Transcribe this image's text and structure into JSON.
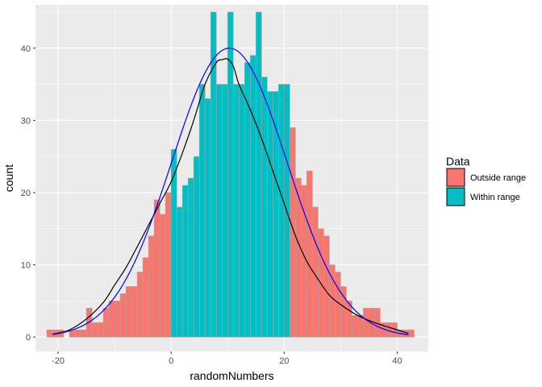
{
  "chart_data": {
    "type": "bar",
    "subtype": "histogram",
    "xlabel": "randomNumbers",
    "ylabel": "count",
    "xlim": [
      -24,
      45.5
    ],
    "ylim": [
      -2,
      46
    ],
    "x_ticks": [
      -20,
      0,
      20,
      40
    ],
    "y_ticks": [
      0,
      10,
      20,
      30,
      40
    ],
    "bin_width": 1,
    "bins": {
      "start": -22,
      "counts": [
        1,
        1,
        1,
        0,
        1,
        1,
        1,
        4,
        2,
        2,
        4,
        5,
        5,
        6,
        7,
        7,
        9,
        11,
        14,
        19,
        17,
        20,
        26,
        18,
        21,
        22,
        25,
        35,
        33,
        45,
        35,
        35,
        45,
        35,
        35,
        38,
        39,
        45,
        36,
        34,
        34,
        35,
        35,
        29,
        22,
        21,
        23,
        18,
        15,
        14,
        10,
        9,
        7,
        5,
        3,
        3,
        4,
        4,
        4,
        2,
        2,
        2,
        1,
        1,
        1
      ],
      "within_range_from": 0,
      "within_range_to": 20.5
    },
    "series": [
      {
        "name": "Outside range",
        "color": "#F8766D"
      },
      {
        "name": "Within range",
        "color": "#00BFC4"
      }
    ],
    "bar_outline_color": "#a6a6a6",
    "curves": [
      {
        "color": "#000000",
        "kind": "density-smooth",
        "x": [
          -21,
          -18,
          -15,
          -12,
          -10,
          -8,
          -6,
          -4,
          -2,
          0,
          2,
          4,
          6,
          8,
          9,
          10,
          11,
          12,
          14,
          16,
          18,
          20,
          22,
          24,
          26,
          28,
          30,
          33,
          36,
          40,
          42
        ],
        "y": [
          0.4,
          1.0,
          2.5,
          4.8,
          7.2,
          9.6,
          12.5,
          15.5,
          18.5,
          21.5,
          25.5,
          30,
          35,
          38,
          38.4,
          38.5,
          37.5,
          35,
          31.5,
          27.5,
          23,
          18.5,
          14,
          10.5,
          8,
          5.8,
          4.5,
          3,
          2,
          1,
          0.5
        ]
      },
      {
        "color": "#0000ff",
        "kind": "normal-fit",
        "mean": 10.3,
        "sd": 10.2,
        "peak": 40,
        "x_range": [
          -21,
          42
        ]
      }
    ],
    "legend": {
      "title": "Data",
      "position": "right"
    },
    "grid": true,
    "panel_background": "#EBEBEB"
  }
}
